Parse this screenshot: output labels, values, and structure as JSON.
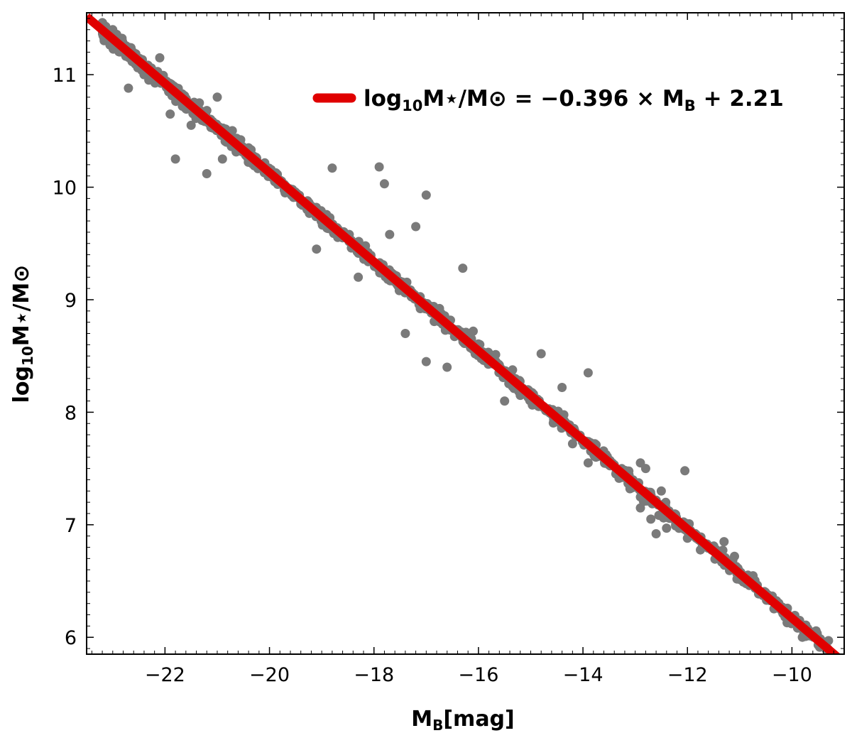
{
  "chart_data": {
    "type": "scatter",
    "title": "",
    "xlabel": "M_B[mag]",
    "xlabel_parts": {
      "main": "M",
      "sub": "B",
      "rest": "[mag]"
    },
    "ylabel": "log10 M⋆/M⊙",
    "ylabel_parts": {
      "pre": "log",
      "sub": "10",
      "rest": "M⋆/M⊙"
    },
    "xlim": [
      -23.5,
      -9.0
    ],
    "ylim": [
      5.85,
      11.55
    ],
    "xticks": [
      -22,
      -20,
      -18,
      -16,
      -14,
      -12,
      -10
    ],
    "xtick_labels": [
      "−22",
      "−20",
      "−18",
      "−16",
      "−14",
      "−12",
      "−10"
    ],
    "yticks": [
      6,
      7,
      8,
      9,
      10,
      11
    ],
    "ytick_labels": [
      "6",
      "7",
      "8",
      "9",
      "10",
      "11"
    ],
    "legend_position": "top-right",
    "legend": {
      "label": "log10M⋆/M⊙ = −0.396 × MB + 2.21",
      "parts": {
        "pre": "log",
        "sub": "10",
        "mid": "M⋆/M⊙ = −0.396 × M",
        "sub2": "B",
        "post": " + 2.21"
      }
    },
    "fit": {
      "slope": -0.396,
      "intercept": 2.21,
      "color": "#e00000",
      "name": "fit-line"
    },
    "scatter_color": "#7a7a7a",
    "scatter_outliers": [
      {
        "x": -22.7,
        "y": 10.88
      },
      {
        "x": -22.1,
        "y": 11.15
      },
      {
        "x": -21.8,
        "y": 10.25
      },
      {
        "x": -21.9,
        "y": 10.65
      },
      {
        "x": -21.2,
        "y": 10.12
      },
      {
        "x": -21.0,
        "y": 10.8
      },
      {
        "x": -20.9,
        "y": 10.25
      },
      {
        "x": -19.9,
        "y": 10.05
      },
      {
        "x": -19.7,
        "y": 9.95
      },
      {
        "x": -19.1,
        "y": 9.45
      },
      {
        "x": -18.8,
        "y": 10.17
      },
      {
        "x": -17.9,
        "y": 10.18
      },
      {
        "x": -17.8,
        "y": 10.03
      },
      {
        "x": -17.7,
        "y": 9.58
      },
      {
        "x": -17.2,
        "y": 9.65
      },
      {
        "x": -17.0,
        "y": 9.93
      },
      {
        "x": -17.0,
        "y": 8.45
      },
      {
        "x": -16.3,
        "y": 9.28
      },
      {
        "x": -18.3,
        "y": 9.2
      },
      {
        "x": -17.4,
        "y": 8.7
      },
      {
        "x": -16.6,
        "y": 8.4
      },
      {
        "x": -15.2,
        "y": 8.15
      },
      {
        "x": -14.8,
        "y": 8.52
      },
      {
        "x": -14.4,
        "y": 8.22
      },
      {
        "x": -13.9,
        "y": 8.35
      },
      {
        "x": -14.2,
        "y": 7.72
      },
      {
        "x": -13.9,
        "y": 7.55
      },
      {
        "x": -13.1,
        "y": 7.32
      },
      {
        "x": -12.9,
        "y": 7.55
      },
      {
        "x": -12.8,
        "y": 7.5
      },
      {
        "x": -12.9,
        "y": 7.15
      },
      {
        "x": -12.7,
        "y": 7.05
      },
      {
        "x": -12.6,
        "y": 6.92
      },
      {
        "x": -12.4,
        "y": 6.97
      },
      {
        "x": -12.5,
        "y": 7.3
      },
      {
        "x": -12.05,
        "y": 7.48
      },
      {
        "x": -12.0,
        "y": 6.88
      },
      {
        "x": -11.3,
        "y": 6.85
      },
      {
        "x": -11.1,
        "y": 6.72
      },
      {
        "x": -10.7,
        "y": 6.45
      },
      {
        "x": -9.8,
        "y": 6.0
      },
      {
        "x": -9.3,
        "y": 5.97
      },
      {
        "x": -15.5,
        "y": 8.1
      },
      {
        "x": -16.1,
        "y": 8.72
      },
      {
        "x": -18.6,
        "y": 9.55
      },
      {
        "x": -19.4,
        "y": 9.85
      },
      {
        "x": -20.4,
        "y": 10.35
      },
      {
        "x": -21.5,
        "y": 10.55
      },
      {
        "x": -22.4,
        "y": 11.0
      },
      {
        "x": -23.0,
        "y": 11.4
      }
    ]
  }
}
